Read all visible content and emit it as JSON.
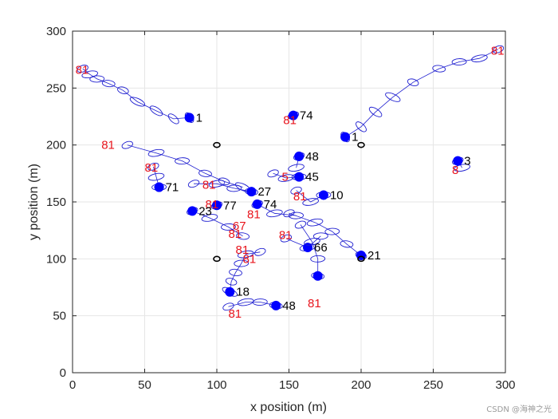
{
  "chart_data": {
    "type": "scatter",
    "xlabel": "x position (m)",
    "ylabel": "y position (m)",
    "xlim": [
      0,
      300
    ],
    "ylim": [
      0,
      300
    ],
    "xticks": [
      0,
      50,
      100,
      150,
      200,
      250,
      300
    ],
    "yticks": [
      0,
      50,
      100,
      150,
      200,
      250,
      300
    ],
    "grid": true,
    "colors": {
      "track": "#1f1fd0",
      "target": "#0000ff",
      "sensor": "#000000",
      "label_id": "#000000",
      "label_step": "#e8141c",
      "axis": "#262626",
      "grid": "#e6e6e6"
    },
    "sensors": [
      {
        "x": 100,
        "y": 200
      },
      {
        "x": 200,
        "y": 200
      },
      {
        "x": 100,
        "y": 100
      },
      {
        "x": 200,
        "y": 100
      }
    ],
    "tracks": [
      {
        "id": "1",
        "end": [
          81,
          224
        ],
        "end_label": "1",
        "points": [
          [
            7,
            267
          ],
          [
            12,
            262
          ],
          [
            17,
            258
          ],
          [
            25,
            254
          ],
          [
            35,
            248
          ],
          [
            45,
            238
          ],
          [
            58,
            230
          ],
          [
            70,
            223
          ],
          [
            81,
            224
          ]
        ],
        "start_label": "81",
        "start_label_at": [
          2,
          266
        ]
      },
      {
        "id": "1b",
        "end": [
          189,
          207
        ],
        "end_label": "1",
        "points": [
          [
            295,
            284
          ],
          [
            282,
            276
          ],
          [
            268,
            273
          ],
          [
            254,
            267
          ],
          [
            236,
            255
          ],
          [
            222,
            242
          ],
          [
            210,
            229
          ],
          [
            200,
            216
          ],
          [
            189,
            207
          ]
        ],
        "start_label": "81",
        "start_label_at": [
          290,
          283
        ]
      },
      {
        "id": "74",
        "end": [
          153,
          226
        ],
        "end_label": "74",
        "points": [
          [
            153,
            226
          ]
        ],
        "start_label": "81",
        "start_label_at": [
          146,
          222
        ]
      },
      {
        "id": "3",
        "end": [
          267,
          186
        ],
        "end_label": "3",
        "points": [
          [
            267,
            186
          ],
          [
            270,
            180
          ]
        ],
        "start_label": "8",
        "start_label_at": [
          263,
          178
        ]
      },
      {
        "id": "71",
        "end": [
          60,
          163
        ],
        "end_label": "71",
        "points": [
          [
            38,
            200
          ],
          [
            58,
            193
          ],
          [
            76,
            186
          ],
          [
            92,
            175
          ],
          [
            105,
            168
          ],
          [
            118,
            163
          ]
        ],
        "start_label": "81",
        "start_label_at": [
          20,
          200
        ]
      },
      {
        "id": "71b",
        "end": [
          60,
          163
        ],
        "end_label": "",
        "points": [
          [
            56,
            181
          ],
          [
            58,
            172
          ],
          [
            60,
            163
          ]
        ],
        "start_label": "81",
        "start_label_at": [
          50,
          180
        ]
      },
      {
        "id": "48a",
        "end": [
          157,
          190
        ],
        "end_label": "48",
        "points": [
          [
            157,
            190
          ],
          [
            155,
            180
          ]
        ],
        "start_label": "",
        "start_label_at": null
      },
      {
        "id": "45",
        "end": [
          157,
          172
        ],
        "end_label": "45",
        "points": [
          [
            139,
            175
          ],
          [
            148,
            171
          ],
          [
            157,
            172
          ]
        ],
        "start_label": "5",
        "start_label_at": [
          145,
          172
        ]
      },
      {
        "id": "10",
        "end": [
          174,
          156
        ],
        "end_label": "10",
        "points": [
          [
            155,
            160
          ],
          [
            165,
            150
          ],
          [
            174,
            156
          ]
        ],
        "start_label": "81",
        "start_label_at": [
          153,
          155
        ]
      },
      {
        "id": "27",
        "end": [
          124,
          159
        ],
        "end_label": "27",
        "points": [
          [
            84,
            166
          ],
          [
            100,
            166
          ],
          [
            112,
            162
          ],
          [
            124,
            159
          ]
        ],
        "start_label": "81",
        "start_label_at": [
          90,
          165
        ]
      },
      {
        "id": "77",
        "end": [
          100,
          147
        ],
        "end_label": "77",
        "points": [
          [
            100,
            147
          ]
        ],
        "start_label": "81",
        "start_label_at": [
          92,
          148
        ]
      },
      {
        "id": "74b",
        "end": [
          128,
          148
        ],
        "end_label": "74",
        "points": [
          [
            128,
            148
          ],
          [
            140,
            140
          ],
          [
            155,
            138
          ]
        ],
        "start_label": "81",
        "start_label_at": [
          121,
          139
        ]
      },
      {
        "id": "23",
        "end": [
          83,
          142
        ],
        "end_label": "23",
        "points": [
          [
            83,
            142
          ],
          [
            95,
            136
          ],
          [
            108,
            128
          ],
          [
            118,
            120
          ]
        ],
        "start_label": "",
        "start_label_at": null
      },
      {
        "id": "21",
        "end": [
          200,
          103
        ],
        "end_label": "21",
        "points": [
          [
            150,
            140
          ],
          [
            168,
            132
          ],
          [
            180,
            124
          ],
          [
            190,
            113
          ],
          [
            200,
            103
          ]
        ],
        "start_label": "",
        "start_label_at": null
      },
      {
        "id": "66",
        "end": [
          163,
          110
        ],
        "end_label": "66",
        "points": [
          [
            148,
            118
          ],
          [
            163,
            110
          ],
          [
            172,
            120
          ]
        ],
        "start_label": "81",
        "start_label_at": [
          143,
          121
        ]
      },
      {
        "id": "18",
        "end": [
          109,
          71
        ],
        "end_label": "18",
        "points": [
          [
            130,
            106
          ],
          [
            120,
            104
          ],
          [
            117,
            96
          ],
          [
            113,
            88
          ],
          [
            110,
            80
          ],
          [
            109,
            71
          ]
        ],
        "start_label": "67",
        "start_label_at": [
          111,
          129
        ]
      },
      {
        "id": "48",
        "end": [
          141,
          59
        ],
        "end_label": "48",
        "points": [
          [
            108,
            58
          ],
          [
            120,
            62
          ],
          [
            130,
            62
          ],
          [
            141,
            59
          ]
        ],
        "start_label": "81",
        "start_label_at": [
          108,
          52
        ]
      },
      {
        "id": "81c",
        "end": [
          170,
          85
        ],
        "end_label": "",
        "points": [
          [
            158,
            130
          ],
          [
            166,
            115
          ],
          [
            170,
            100
          ],
          [
            170,
            85
          ]
        ],
        "start_label": "81",
        "start_label_at": [
          163,
          61
        ]
      }
    ],
    "free_labels_red": [
      {
        "text": "81",
        "at": [
          108,
          122
        ]
      },
      {
        "text": "81",
        "at": [
          118,
          100
        ]
      },
      {
        "text": "81",
        "at": [
          113,
          108
        ]
      }
    ]
  },
  "watermark": "CSDN @海神之光"
}
